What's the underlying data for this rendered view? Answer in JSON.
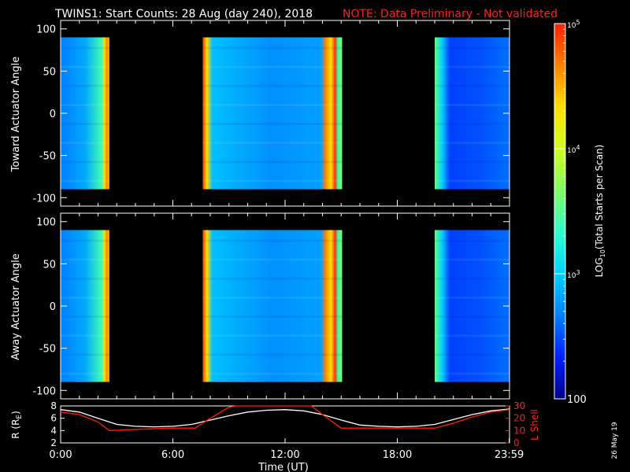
{
  "title": "TWINS1: Start Counts: 28 Aug (day 240), 2018",
  "note": "NOTE: Data Preliminary - Not validated",
  "stamp": "26 May 19",
  "colorbar": {
    "label_prefix": "LOG",
    "label_sub": "10",
    "label_suffix": "(Total Starts per Scan)",
    "ticks": [
      {
        "value": 100,
        "text": "100"
      },
      {
        "value": 1000,
        "text": "10",
        "sup": "3"
      },
      {
        "value": 10000,
        "text": "10",
        "sup": "4"
      },
      {
        "value": 100000,
        "text": "10",
        "sup": "5"
      }
    ],
    "range": [
      100,
      100000
    ],
    "scale": "log",
    "colors": [
      "#00008c",
      "#0020ff",
      "#0080ff",
      "#00d0ff",
      "#30ffd0",
      "#80ff60",
      "#d0ff20",
      "#ffe000",
      "#ff8000",
      "#ff2000"
    ]
  },
  "chart_data": [
    {
      "type": "heatmap",
      "panel": "toward",
      "ylabel": "Toward Actuator Angle",
      "ylim": [
        -110,
        110
      ],
      "yticks": [
        100,
        50,
        0,
        -50,
        -100
      ],
      "xlim": [
        0,
        24
      ],
      "angle_range": [
        -90,
        90
      ],
      "segments": [
        {
          "start": 0.0,
          "end": 2.6
        },
        {
          "start": 7.6,
          "end": 15.05
        },
        {
          "start": 20.0,
          "end": 24.0
        }
      ]
    },
    {
      "type": "heatmap",
      "panel": "away",
      "ylabel": "Away Actuator Angle",
      "ylim": [
        -110,
        110
      ],
      "yticks": [
        100,
        50,
        0,
        -50,
        -100
      ],
      "xlim": [
        0,
        24
      ],
      "angle_range": [
        -90,
        90
      ],
      "segments": [
        {
          "start": 0.0,
          "end": 2.6
        },
        {
          "start": 7.6,
          "end": 15.05
        },
        {
          "start": 20.0,
          "end": 24.0
        }
      ]
    },
    {
      "type": "line",
      "panel": "orbit",
      "xlabel": "Time (UT)",
      "xlim": [
        0,
        24
      ],
      "xticks": [
        {
          "value": 0,
          "label": "0:00"
        },
        {
          "value": 6,
          "label": "6:00"
        },
        {
          "value": 12,
          "label": "12:00"
        },
        {
          "value": 18,
          "label": "18:00"
        },
        {
          "value": 23.983,
          "label": "23:59"
        }
      ],
      "ylabel_left": "R (R",
      "ylabel_left_sub": "E",
      "ylabel_left_end": ")",
      "ylim_left": [
        2,
        8
      ],
      "yticks_left": [
        2,
        4,
        6,
        8
      ],
      "ylabel_right": "L Shell",
      "ylim_right": [
        0,
        30
      ],
      "yticks_right": [
        0,
        10,
        20,
        30
      ],
      "series": [
        {
          "axis": "left",
          "color": "#ffffff",
          "x": [
            0,
            1,
            2,
            3,
            4,
            5,
            6,
            7,
            8,
            9,
            10,
            11,
            12,
            13,
            14,
            15,
            16,
            17,
            18,
            19,
            20,
            21,
            22,
            23,
            24
          ],
          "y": [
            7.4,
            7.0,
            6.0,
            5.0,
            4.7,
            4.6,
            4.7,
            5.0,
            5.7,
            6.4,
            7.0,
            7.3,
            7.4,
            7.2,
            6.6,
            5.7,
            4.9,
            4.7,
            4.6,
            4.7,
            5.0,
            5.8,
            6.6,
            7.2,
            7.5
          ]
        },
        {
          "axis": "right",
          "color": "#ff2000",
          "x": [
            0,
            1,
            2,
            2.6,
            4,
            6,
            7.2,
            8,
            9,
            9.4,
            13.4,
            14,
            15,
            18,
            20,
            21,
            22,
            23,
            24
          ],
          "y": [
            25,
            23,
            17,
            10,
            11,
            12,
            12,
            20,
            29,
            30,
            30,
            23,
            12,
            12,
            12,
            16,
            21,
            25,
            27
          ]
        }
      ]
    }
  ]
}
